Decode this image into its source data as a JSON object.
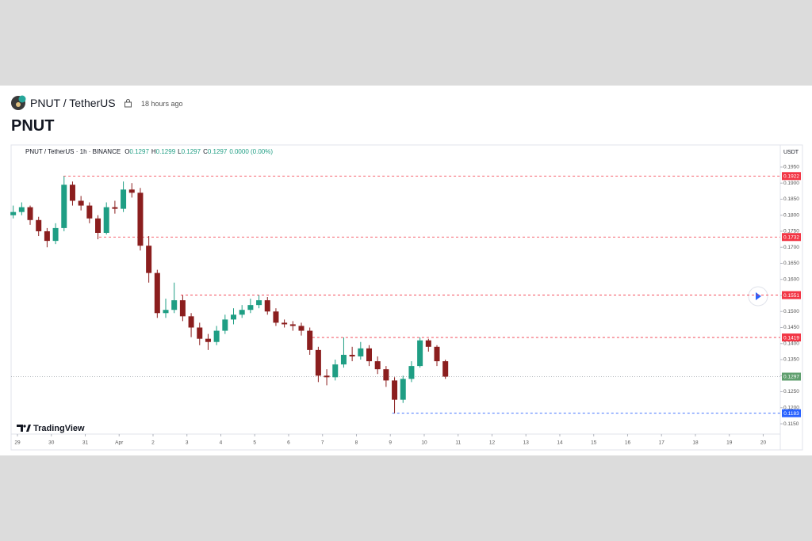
{
  "header": {
    "symbol": "PNUT / TetherUS",
    "time": "18 hours ago",
    "title": "PNUT"
  },
  "chart_data": {
    "type": "candlestick",
    "legend": {
      "symbol": "PNUT / TetherUS · 1h · BINANCE",
      "ohlc": [
        {
          "label": "O",
          "value": "0.1297"
        },
        {
          "label": "H",
          "value": "0.1299"
        },
        {
          "label": "L",
          "value": "0.1297"
        },
        {
          "label": "C",
          "value": "0.1297"
        }
      ],
      "change": "0.0000 (0.00%)"
    },
    "y_unit": "USDT",
    "branding": "TradingView",
    "up_color": "#1f9e84",
    "down_color": "#8b1e1e",
    "x": [
      -0.125,
      0.125,
      0.375,
      0.625,
      0.875,
      1.125,
      1.375,
      1.625,
      1.875,
      2.125,
      2.375,
      2.625,
      2.875,
      3.125,
      3.375,
      3.625,
      3.875,
      4.125,
      4.375,
      4.625,
      4.875,
      5.125,
      5.375,
      5.625,
      5.875,
      6.125,
      6.375,
      6.625,
      6.875,
      7.125,
      7.375,
      7.625,
      7.875,
      8.125,
      8.375,
      8.625,
      8.875,
      9.125,
      9.375,
      9.625,
      9.875,
      10.125,
      10.375,
      10.625,
      10.875,
      11.125,
      11.375,
      11.625,
      11.875,
      12.125,
      12.375,
      12.625
    ],
    "open": [
      0.18,
      0.181,
      0.1825,
      0.1785,
      0.175,
      0.172,
      0.176,
      0.1895,
      0.1845,
      0.183,
      0.179,
      0.1745,
      0.1825,
      0.182,
      0.188,
      0.187,
      0.1705,
      0.162,
      0.1495,
      0.1505,
      0.1535,
      0.1485,
      0.145,
      0.1415,
      0.1405,
      0.144,
      0.1475,
      0.149,
      0.1505,
      0.152,
      0.1535,
      0.15,
      0.1465,
      0.146,
      0.1455,
      0.144,
      0.138,
      0.13,
      0.1295,
      0.1335,
      0.1365,
      0.136,
      0.1385,
      0.1345,
      0.132,
      0.1285,
      0.1225,
      0.129,
      0.133,
      0.141,
      0.139,
      0.1345
    ],
    "high": [
      0.183,
      0.184,
      0.183,
      0.1795,
      0.176,
      0.1775,
      0.1922,
      0.1905,
      0.186,
      0.184,
      0.18,
      0.184,
      0.1845,
      0.1905,
      0.19,
      0.1885,
      0.1735,
      0.163,
      0.154,
      0.159,
      0.155,
      0.1495,
      0.1465,
      0.143,
      0.1455,
      0.149,
      0.151,
      0.152,
      0.154,
      0.1551,
      0.1545,
      0.151,
      0.1475,
      0.147,
      0.1465,
      0.145,
      0.139,
      0.132,
      0.135,
      0.1419,
      0.139,
      0.1405,
      0.1395,
      0.136,
      0.133,
      0.1295,
      0.13,
      0.1345,
      0.1419,
      0.1415,
      0.1395,
      0.135
    ],
    "low": [
      0.179,
      0.18,
      0.177,
      0.1735,
      0.17,
      0.171,
      0.175,
      0.183,
      0.1815,
      0.1775,
      0.1725,
      0.174,
      0.1805,
      0.181,
      0.1855,
      0.169,
      0.159,
      0.148,
      0.148,
      0.1495,
      0.147,
      0.142,
      0.1395,
      0.138,
      0.1395,
      0.143,
      0.146,
      0.148,
      0.1495,
      0.151,
      0.149,
      0.1455,
      0.145,
      0.144,
      0.1425,
      0.1365,
      0.128,
      0.127,
      0.1285,
      0.1325,
      0.1345,
      0.135,
      0.133,
      0.1305,
      0.1265,
      0.1183,
      0.1215,
      0.128,
      0.1325,
      0.1375,
      0.133,
      0.129
    ],
    "close": [
      0.181,
      0.1825,
      0.1785,
      0.175,
      0.172,
      0.176,
      0.1895,
      0.1845,
      0.183,
      0.179,
      0.1745,
      0.1825,
      0.182,
      0.188,
      0.187,
      0.1705,
      0.162,
      0.1495,
      0.1505,
      0.1535,
      0.1485,
      0.145,
      0.1415,
      0.1405,
      0.144,
      0.1475,
      0.149,
      0.1505,
      0.152,
      0.1535,
      0.15,
      0.1465,
      0.146,
      0.1455,
      0.144,
      0.138,
      0.13,
      0.1295,
      0.1335,
      0.1365,
      0.136,
      0.1385,
      0.1345,
      0.132,
      0.1285,
      0.1225,
      0.129,
      0.133,
      0.141,
      0.139,
      0.1345,
      0.1297
    ],
    "xlim": [
      -0.187,
      22.504
    ],
    "ylim": [
      0.1118,
      0.1977
    ],
    "xticks": [
      {
        "value": 0,
        "label": "29"
      },
      {
        "value": 1,
        "label": "30"
      },
      {
        "value": 2,
        "label": "31"
      },
      {
        "value": 3,
        "label": "Apr"
      },
      {
        "value": 4,
        "label": "2"
      },
      {
        "value": 5,
        "label": "3"
      },
      {
        "value": 6,
        "label": "4"
      },
      {
        "value": 7,
        "label": "5"
      },
      {
        "value": 8,
        "label": "6"
      },
      {
        "value": 9,
        "label": "7"
      },
      {
        "value": 10,
        "label": "8"
      },
      {
        "value": 11,
        "label": "9"
      },
      {
        "value": 12,
        "label": "10"
      },
      {
        "value": 13,
        "label": "11"
      },
      {
        "value": 14,
        "label": "12"
      },
      {
        "value": 15,
        "label": "13"
      },
      {
        "value": 16,
        "label": "14"
      },
      {
        "value": 17,
        "label": "15"
      },
      {
        "value": 18,
        "label": "16"
      },
      {
        "value": 19,
        "label": "17"
      },
      {
        "value": 20,
        "label": "18"
      },
      {
        "value": 21,
        "label": "19"
      },
      {
        "value": 22,
        "label": "20"
      }
    ],
    "yticks": [
      {
        "value": 0.115,
        "label": "0.1150"
      },
      {
        "value": 0.12,
        "label": "0.1200"
      },
      {
        "value": 0.125,
        "label": "0.1250"
      },
      {
        "value": 0.13,
        "label": "0.1300"
      },
      {
        "value": 0.135,
        "label": "0.1350"
      },
      {
        "value": 0.14,
        "label": "0.1400"
      },
      {
        "value": 0.145,
        "label": "0.1450"
      },
      {
        "value": 0.15,
        "label": "0.1500"
      },
      {
        "value": 0.155,
        "label": "0.1550"
      },
      {
        "value": 0.16,
        "label": "0.1600"
      },
      {
        "value": 0.165,
        "label": "0.1650"
      },
      {
        "value": 0.17,
        "label": "0.1700"
      },
      {
        "value": 0.175,
        "label": "0.1750"
      },
      {
        "value": 0.18,
        "label": "0.1800"
      },
      {
        "value": 0.185,
        "label": "0.1850"
      },
      {
        "value": 0.19,
        "label": "0.1900"
      },
      {
        "value": 0.195,
        "label": "0.1950"
      }
    ],
    "levels": [
      {
        "value": 0.1922,
        "color": "#f23645",
        "x": 1.36
      },
      {
        "value": 0.1732,
        "color": "#f23645",
        "x": 2.41
      },
      {
        "value": 0.1551,
        "color": "#f23645",
        "x": 4.82
      },
      {
        "value": 0.1419,
        "color": "#f23645",
        "x": 8.56
      },
      {
        "value": 0.1183,
        "color": "#2962ff",
        "x": 11.06
      }
    ],
    "last_price": {
      "value": 0.1297,
      "color": "#5f9f6e"
    }
  }
}
